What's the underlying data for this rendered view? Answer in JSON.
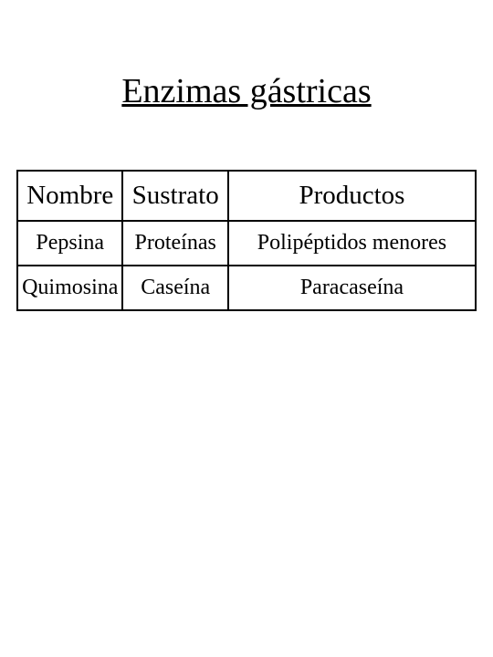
{
  "title": "Enzimas gástricas",
  "table": {
    "type": "table",
    "background_color": "#ffffff",
    "border_color": "#000000",
    "text_color": "#000000",
    "header_fontsize": 29,
    "body_fontsize": 24,
    "columns": [
      {
        "label": "Nombre",
        "width_pct": 23
      },
      {
        "label": "Sustrato",
        "width_pct": 23
      },
      {
        "label": "Productos",
        "width_pct": 54
      }
    ],
    "rows": [
      {
        "c0": "Pepsina",
        "c1": "Proteínas",
        "c2": "Polipéptidos menores"
      },
      {
        "c0": "Quimosina",
        "c1": "Caseína",
        "c2": "Paracaseína"
      }
    ]
  }
}
